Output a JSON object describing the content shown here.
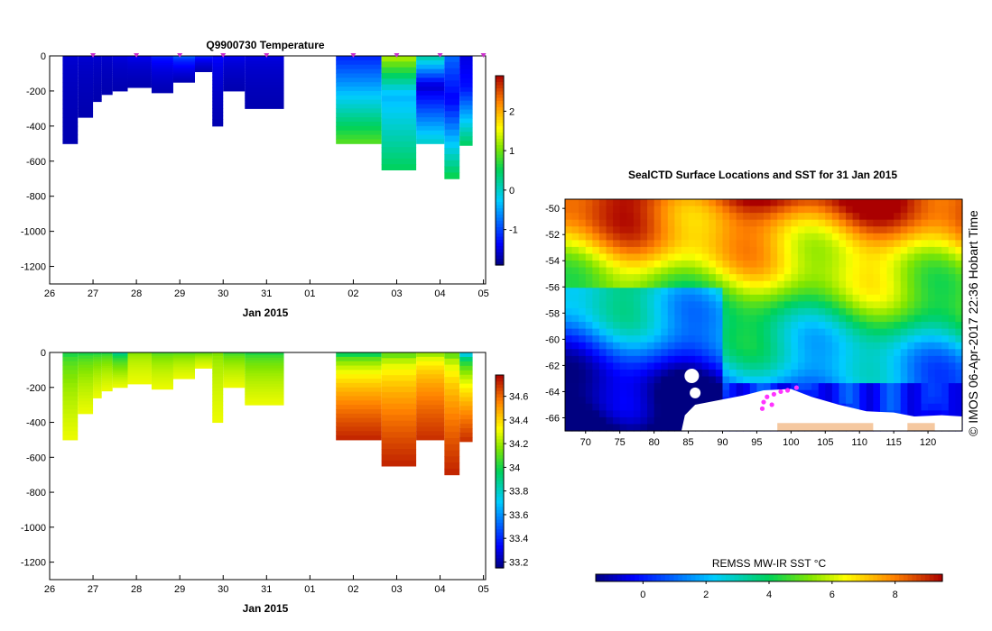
{
  "chart_data": [
    {
      "type": "heatmap",
      "title": "Q9900730  Temperature",
      "xlabel": "Jan 2015",
      "x_ticks": [
        "26",
        "27",
        "28",
        "29",
        "30",
        "31",
        "01",
        "02",
        "03",
        "04",
        "05"
      ],
      "x_days": [
        26,
        27,
        28,
        29,
        30,
        31,
        32,
        33,
        34,
        35,
        36
      ],
      "xlim": [
        26,
        36.05
      ],
      "ylim": [
        -1300,
        0
      ],
      "y_ticks": [
        0,
        -200,
        -400,
        -600,
        -800,
        -1000,
        -1200
      ],
      "colorbar": {
        "vmin": -1.9,
        "vmax": 2.9,
        "ticks": [
          2,
          1,
          0,
          -1
        ]
      },
      "profile_markers_day": [
        27,
        28,
        29,
        30,
        31,
        33,
        34,
        35,
        36
      ],
      "profiles": [
        {
          "x0": 26.3,
          "x1": 26.65,
          "depth": 500,
          "surf": -1.5,
          "bot": -1.7
        },
        {
          "x0": 26.65,
          "x1": 27.0,
          "depth": 350,
          "surf": -1.5,
          "bot": -1.7
        },
        {
          "x0": 27.0,
          "x1": 27.2,
          "depth": 260,
          "surf": -1.5,
          "bot": -1.7
        },
        {
          "x0": 27.2,
          "x1": 27.45,
          "depth": 220,
          "surf": -1.5,
          "bot": -1.7
        },
        {
          "x0": 27.45,
          "x1": 27.8,
          "depth": 200,
          "surf": -1.4,
          "bot": -1.7
        },
        {
          "x0": 27.8,
          "x1": 28.35,
          "depth": 180,
          "surf": -1.3,
          "bot": -1.7
        },
        {
          "x0": 28.35,
          "x1": 28.85,
          "depth": 210,
          "surf": -1.0,
          "bot": -1.7
        },
        {
          "x0": 28.85,
          "x1": 29.35,
          "depth": 150,
          "surf": -0.5,
          "bot": -1.7
        },
        {
          "x0": 29.35,
          "x1": 29.75,
          "depth": 90,
          "surf": -0.9,
          "bot": -1.7
        },
        {
          "x0": 29.75,
          "x1": 30.0,
          "depth": 400,
          "surf": -1.2,
          "bot": -1.7
        },
        {
          "x0": 30.0,
          "x1": 30.5,
          "depth": 200,
          "surf": -1.3,
          "bot": -1.7
        },
        {
          "x0": 30.5,
          "x1": 31.4,
          "depth": 300,
          "surf": -1.4,
          "bot": -1.7
        },
        {
          "x0": 32.6,
          "x1": 33.65,
          "depth": 500,
          "surf": -1.2,
          "bot": 0.9,
          "midcold": -0.5
        },
        {
          "x0": 33.65,
          "x1": 34.45,
          "depth": 650,
          "surf": 1.3,
          "bot": 0.5,
          "midcold": -0.4
        },
        {
          "x0": 34.45,
          "x1": 35.1,
          "depth": 500,
          "surf": 0.2,
          "bot": 0.0,
          "midcold": -1.6
        },
        {
          "x0": 35.1,
          "x1": 35.45,
          "depth": 700,
          "surf": -0.8,
          "bot": 0.6,
          "midcold": -1.4
        },
        {
          "x0": 35.45,
          "x1": 35.75,
          "depth": 510,
          "surf": -1.5,
          "bot": 0.5,
          "midcold": -1.3
        }
      ]
    },
    {
      "type": "heatmap",
      "title": "",
      "xlabel": "Jan 2015",
      "x_ticks": [
        "26",
        "27",
        "28",
        "29",
        "30",
        "31",
        "01",
        "02",
        "03",
        "04",
        "05"
      ],
      "x_days": [
        26,
        27,
        28,
        29,
        30,
        31,
        32,
        33,
        34,
        35,
        36
      ],
      "xlim": [
        26,
        36.05
      ],
      "ylim": [
        -1300,
        0
      ],
      "y_ticks": [
        0,
        -200,
        -400,
        -600,
        -800,
        -1000,
        -1200
      ],
      "colorbar": {
        "vmin": 33.15,
        "vmax": 34.78,
        "ticks": [
          34.6,
          34.4,
          34.2,
          34,
          33.8,
          33.6,
          33.4,
          33.2
        ]
      },
      "profiles": [
        {
          "x0": 26.3,
          "x1": 26.65,
          "depth": 500,
          "surf": 33.9,
          "bot": 34.3
        },
        {
          "x0": 26.65,
          "x1": 27.0,
          "depth": 350,
          "surf": 33.9,
          "bot": 34.3
        },
        {
          "x0": 27.0,
          "x1": 27.2,
          "depth": 260,
          "surf": 33.9,
          "bot": 34.3
        },
        {
          "x0": 27.2,
          "x1": 27.45,
          "depth": 220,
          "surf": 33.9,
          "bot": 34.3
        },
        {
          "x0": 27.45,
          "x1": 27.8,
          "depth": 200,
          "surf": 33.7,
          "bot": 34.3
        },
        {
          "x0": 27.8,
          "x1": 28.35,
          "depth": 180,
          "surf": 34.1,
          "bot": 34.3
        },
        {
          "x0": 28.35,
          "x1": 28.85,
          "depth": 210,
          "surf": 34.0,
          "bot": 34.3
        },
        {
          "x0": 28.85,
          "x1": 29.35,
          "depth": 150,
          "surf": 34.0,
          "bot": 34.3
        },
        {
          "x0": 29.35,
          "x1": 29.75,
          "depth": 90,
          "surf": 34.0,
          "bot": 34.3
        },
        {
          "x0": 29.75,
          "x1": 30.0,
          "depth": 400,
          "surf": 34.1,
          "bot": 34.3
        },
        {
          "x0": 30.0,
          "x1": 30.5,
          "depth": 200,
          "surf": 33.95,
          "bot": 34.3
        },
        {
          "x0": 30.5,
          "x1": 31.4,
          "depth": 300,
          "surf": 33.9,
          "bot": 34.3
        },
        {
          "x0": 32.6,
          "x1": 33.65,
          "depth": 500,
          "surf": 33.7,
          "bot": 34.72
        },
        {
          "x0": 33.65,
          "x1": 34.45,
          "depth": 650,
          "surf": 33.9,
          "bot": 34.72
        },
        {
          "x0": 34.45,
          "x1": 35.1,
          "depth": 500,
          "surf": 34.0,
          "bot": 34.7
        },
        {
          "x0": 35.1,
          "x1": 35.45,
          "depth": 700,
          "surf": 33.9,
          "bot": 34.72
        },
        {
          "x0": 35.45,
          "x1": 35.75,
          "depth": 510,
          "surf": 33.4,
          "bot": 34.7
        }
      ]
    },
    {
      "type": "heatmap",
      "title": "SealCTD Surface Locations and SST for 31 Jan 2015",
      "colorbar_label": "REMSS MW-IR SST °C",
      "lon_range": [
        67,
        125
      ],
      "lat_range": [
        -67,
        -49.3
      ],
      "x_ticks": [
        70,
        75,
        80,
        85,
        90,
        95,
        100,
        105,
        110,
        115,
        120
      ],
      "y_ticks": [
        -50,
        -52,
        -54,
        -56,
        -58,
        -60,
        -62,
        -64,
        -66
      ],
      "colorbar": {
        "vmin": -1.5,
        "vmax": 9.5,
        "ticks": [
          0,
          2,
          4,
          6,
          8
        ]
      },
      "seal_locations": [
        {
          "lon": 96.5,
          "lat": -64.4
        },
        {
          "lon": 97.5,
          "lat": -64.2
        },
        {
          "lon": 98.5,
          "lat": -64.0
        },
        {
          "lon": 99.5,
          "lat": -63.9
        },
        {
          "lon": 100.8,
          "lat": -63.7
        },
        {
          "lon": 97.2,
          "lat": -65.0
        },
        {
          "lon": 95.8,
          "lat": -65.3
        },
        {
          "lon": 96.0,
          "lat": -64.8
        }
      ]
    }
  ],
  "credit": "© IMOS 06-Apr-2017 22:36 Hobart Time"
}
